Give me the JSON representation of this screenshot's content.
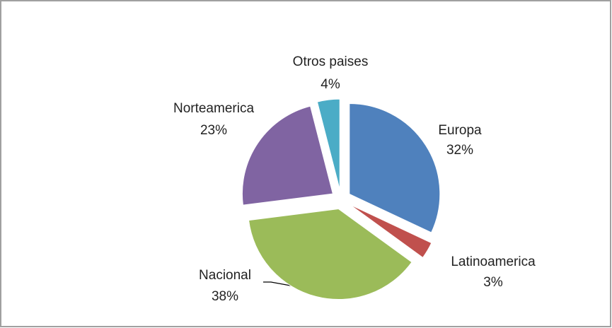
{
  "chart_data": {
    "type": "pie",
    "categories": [
      "Europa",
      "Latinoamerica",
      "Nacional",
      "Norteamerica",
      "Otros paises"
    ],
    "values": [
      32,
      3,
      38,
      23,
      4
    ],
    "value_labels": [
      "32%",
      "3%",
      "38%",
      "23%",
      "4%"
    ],
    "colors": [
      "#4f81bd",
      "#c0504d",
      "#9bbb59",
      "#8064a2",
      "#4bacc6"
    ],
    "exploded": true
  }
}
